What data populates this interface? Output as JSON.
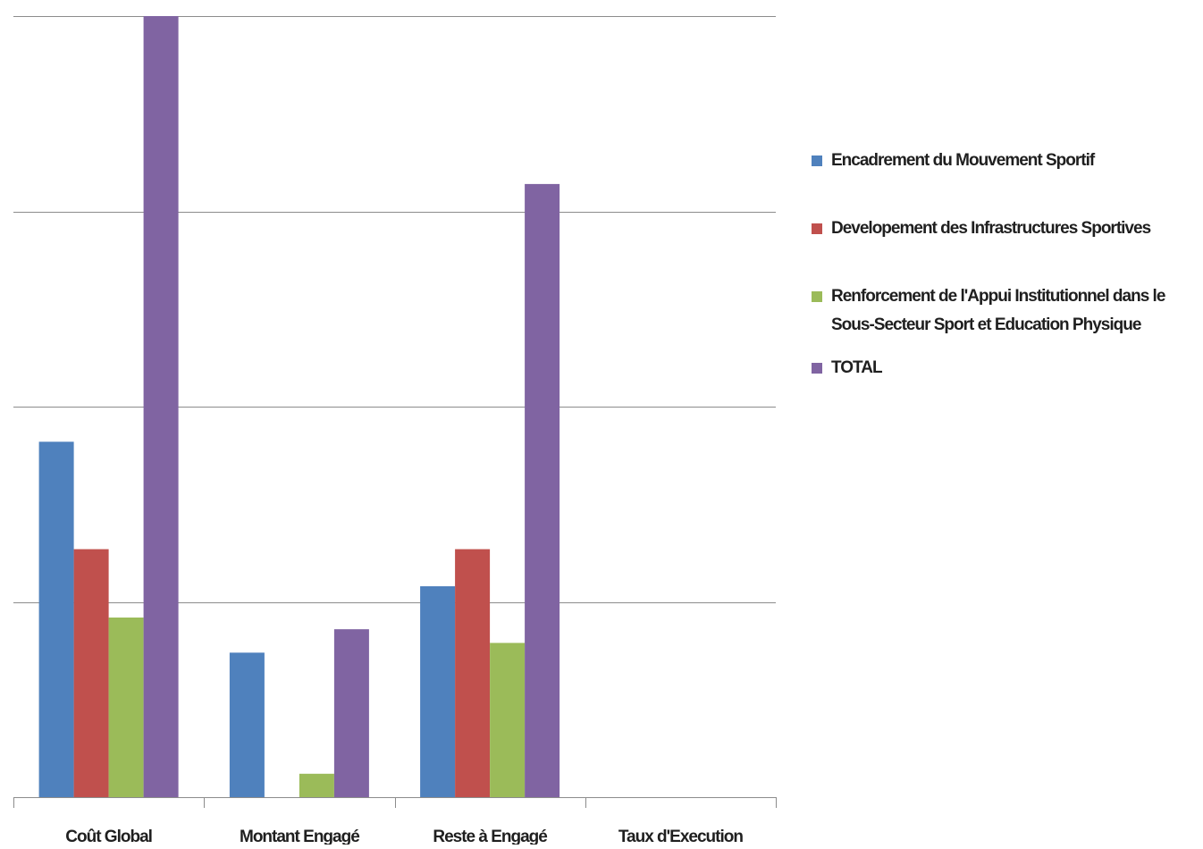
{
  "chart_data": {
    "type": "bar",
    "categories": [
      "Coût Global",
      "Montant Engagé",
      "Reste à Engagé",
      "Taux d'Execution"
    ],
    "series": [
      {
        "name": "Encadrement du Mouvement Sportif",
        "color": "#4f81bd",
        "values": [
          1.82,
          0.74,
          1.08,
          0
        ]
      },
      {
        "name": "Developement des Infrastructures Sportives",
        "color": "#c0504d",
        "values": [
          1.27,
          0,
          1.27,
          0
        ]
      },
      {
        "name": "Renforcement de l'Appui Institutionnel dans le Sous-Secteur Sport et Education Physique",
        "color": "#9bbb59",
        "values": [
          0.92,
          0.12,
          0.79,
          0
        ]
      },
      {
        "name": "TOTAL",
        "color": "#8064a2",
        "values": [
          4.0,
          0.86,
          3.14,
          0
        ]
      }
    ],
    "ylim": [
      0,
      4
    ],
    "grid": true,
    "legend": "right",
    "xlabel": "",
    "ylabel": ""
  }
}
